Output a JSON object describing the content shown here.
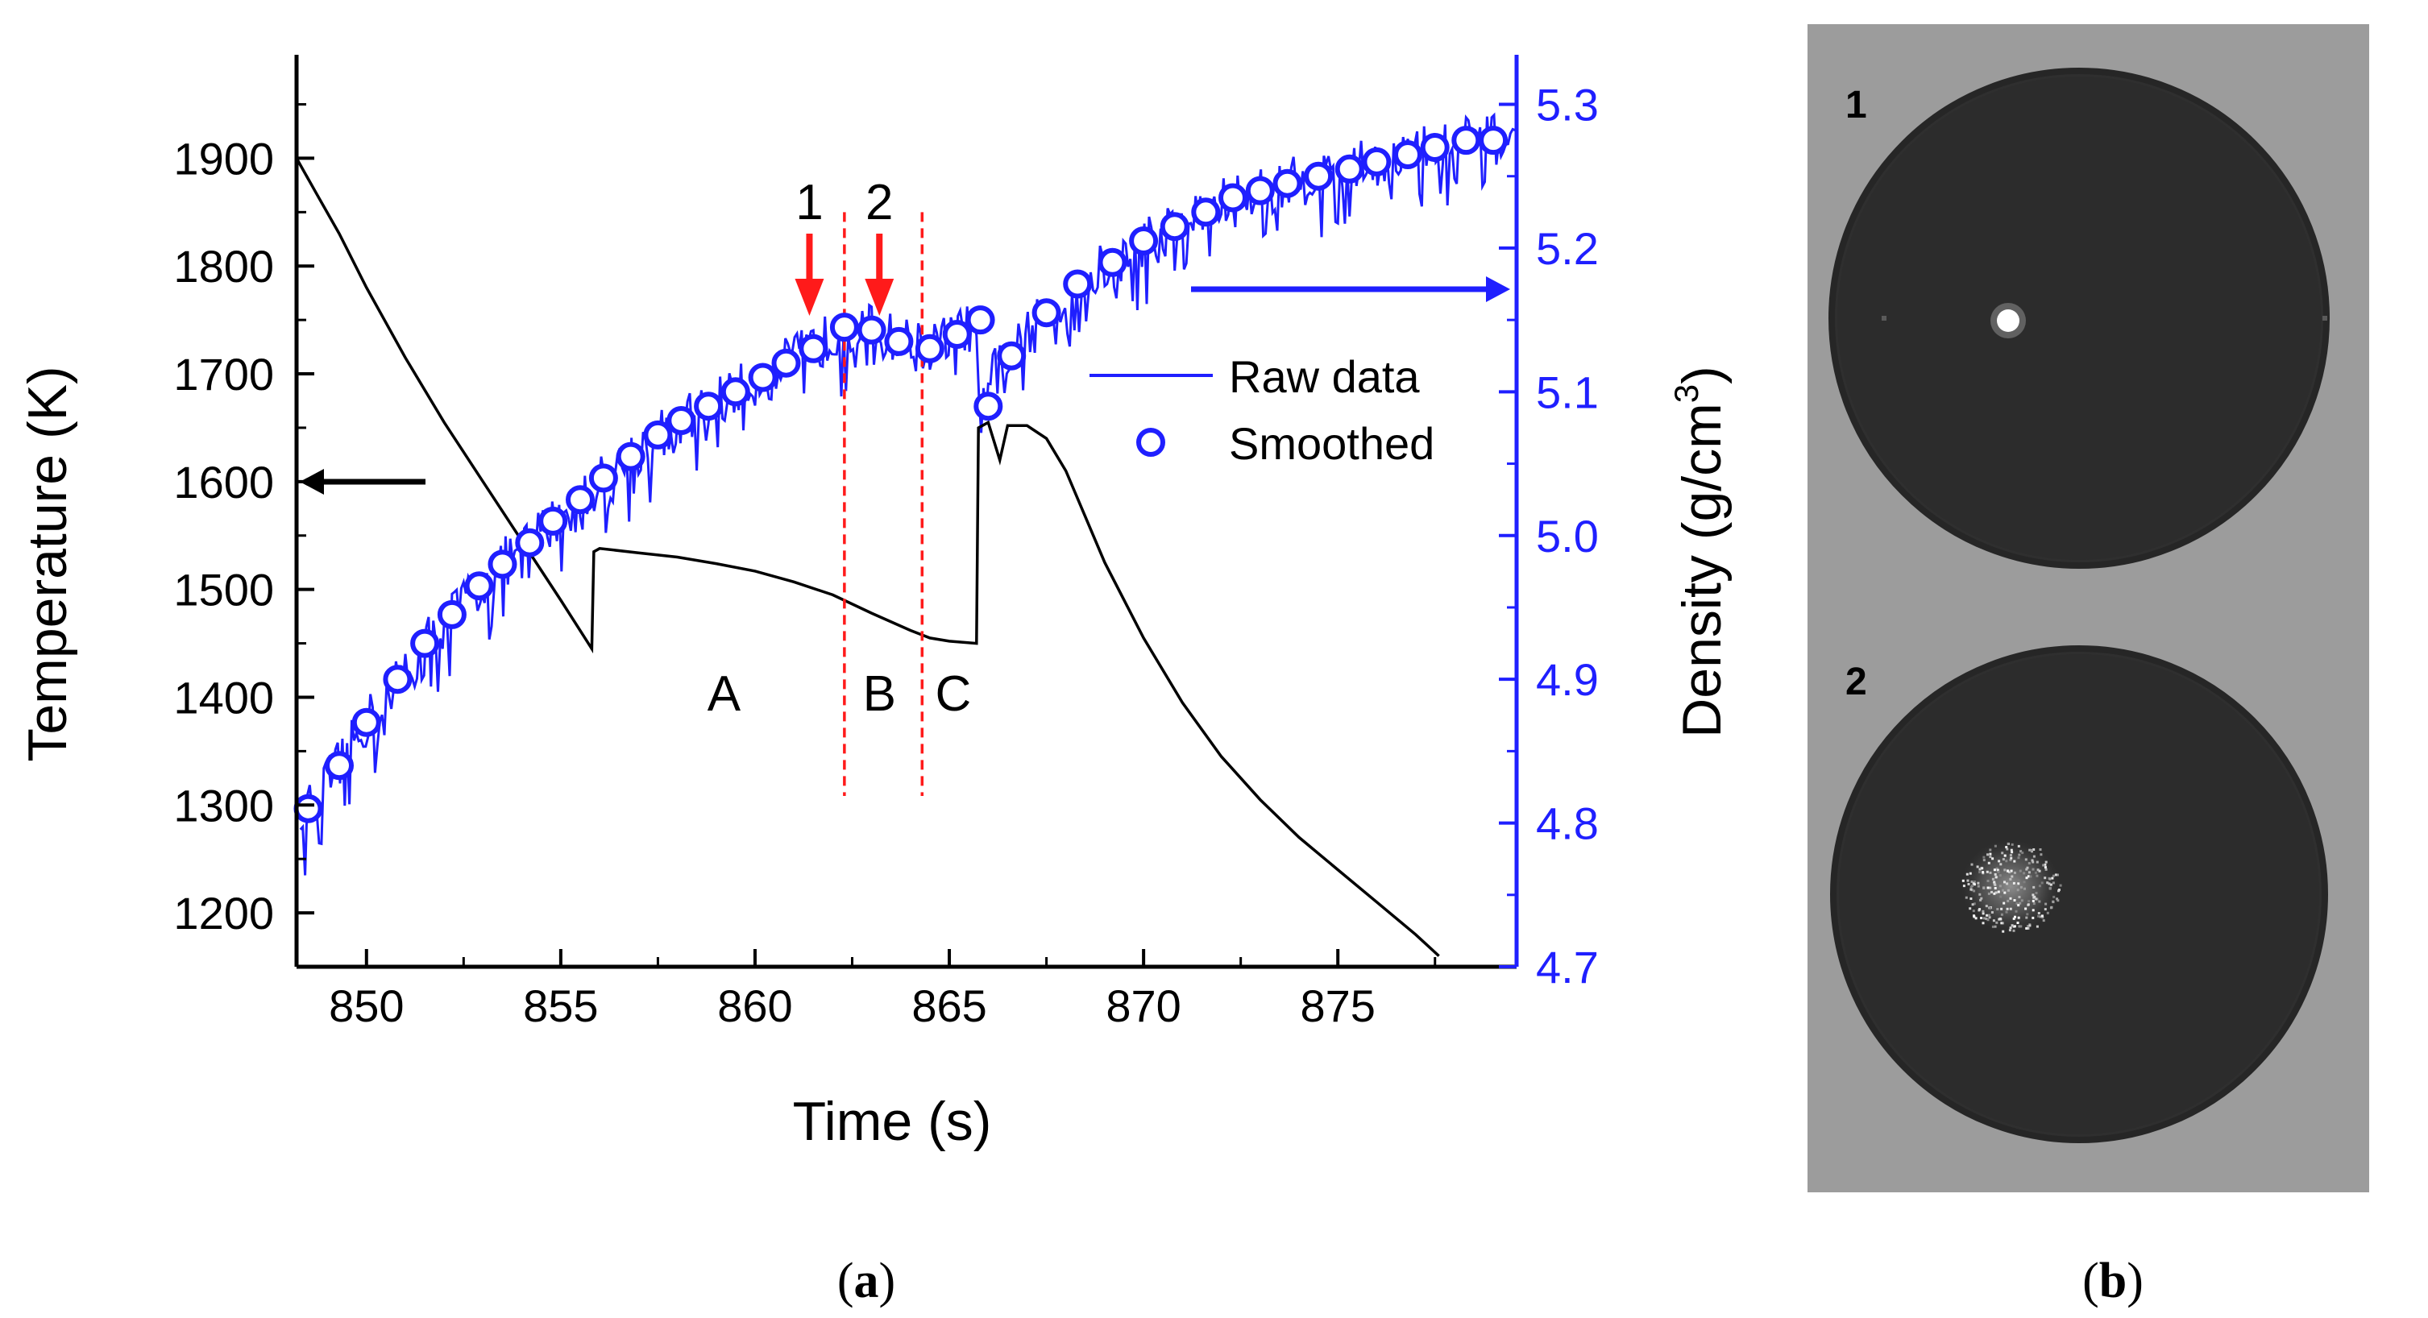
{
  "panels": {
    "a": {
      "label_open": "(",
      "label_letter": "a",
      "label_close": ")"
    },
    "b": {
      "label_open": "(",
      "label_letter": "b",
      "label_close": ")"
    }
  },
  "colors": {
    "temperature": "#000000",
    "density": "#1f1fff",
    "markers": "#ff1a1a"
  },
  "chart_data": {
    "type": "line",
    "xlabel": "Time (s)",
    "ylabel_left": "Temperature (K)",
    "ylabel_right_prefix": "Density (g/cm",
    "ylabel_right_sup": "3",
    "ylabel_right_suffix": ")",
    "xlim": [
      848.2,
      879.6
    ],
    "ylim_left": [
      1150,
      1990
    ],
    "ylim_right": [
      4.7,
      5.33
    ],
    "x_ticks": [
      "850",
      "855",
      "860",
      "865",
      "870",
      "875"
    ],
    "y_left_ticks": [
      "1200",
      "1300",
      "1400",
      "1500",
      "1600",
      "1700",
      "1800",
      "1900"
    ],
    "y_right_ticks": [
      "4.7",
      "4.8",
      "4.9",
      "5.0",
      "5.1",
      "5.2",
      "5.3"
    ],
    "series": [
      {
        "name": "Temperature",
        "axis": "left",
        "x": [
          848.2,
          848.7,
          849.3,
          850,
          851,
          852,
          853,
          854,
          855,
          855.8,
          855.85,
          856,
          857,
          858,
          859,
          860,
          861,
          862,
          863,
          864,
          864.5,
          865,
          865.7,
          865.75,
          866,
          866.3,
          866.5,
          867,
          867.5,
          868,
          869,
          870,
          871,
          872,
          873,
          874,
          875,
          876,
          877,
          877.6
        ],
        "values": [
          1900,
          1868,
          1830,
          1780,
          1715,
          1655,
          1600,
          1545,
          1490,
          1445,
          1535,
          1538,
          1534,
          1530,
          1524,
          1517,
          1507,
          1495,
          1478,
          1462,
          1455,
          1452,
          1450,
          1650,
          1655,
          1620,
          1652,
          1652,
          1640,
          1610,
          1525,
          1455,
          1395,
          1345,
          1305,
          1270,
          1240,
          1210,
          1180,
          1160
        ]
      },
      {
        "name": "Raw data",
        "axis": "right",
        "noise": 0.018
      },
      {
        "name": "Smoothed",
        "axis": "right",
        "x": [
          848.5,
          849.3,
          850,
          850.8,
          851.5,
          852.2,
          852.9,
          853.5,
          854.2,
          854.8,
          855.5,
          856.1,
          856.8,
          857.5,
          858.1,
          858.8,
          859.5,
          860.2,
          860.8,
          861.5,
          862.3,
          863,
          863.7,
          864.5,
          865.2,
          865.8,
          866,
          866.6,
          867.5,
          868.3,
          869.2,
          870,
          870.8,
          871.6,
          872.3,
          873,
          873.7,
          874.5,
          875.3,
          876,
          876.8,
          877.5,
          878.3,
          879
        ],
        "values": [
          4.81,
          4.84,
          4.87,
          4.9,
          4.925,
          4.945,
          4.965,
          4.98,
          4.995,
          5.01,
          5.025,
          5.04,
          5.055,
          5.07,
          5.08,
          5.09,
          5.1,
          5.11,
          5.12,
          5.13,
          5.145,
          5.143,
          5.135,
          5.13,
          5.14,
          5.15,
          5.09,
          5.125,
          5.155,
          5.175,
          5.19,
          5.205,
          5.215,
          5.225,
          5.235,
          5.24,
          5.245,
          5.25,
          5.255,
          5.26,
          5.265,
          5.27,
          5.275,
          5.275
        ]
      }
    ],
    "legend": [
      {
        "label": "Raw data",
        "style": "line"
      },
      {
        "label": "Smoothed",
        "style": "circle"
      }
    ],
    "legend_position": "right-middle",
    "vlines": [
      862.3,
      864.3
    ],
    "region_labels": [
      "A",
      "B",
      "C"
    ],
    "region_x": [
      859.2,
      863.2,
      865.1
    ],
    "arrows": [
      {
        "label": "1",
        "x": 861.4
      },
      {
        "label": "2",
        "x": 863.2
      }
    ]
  }
}
